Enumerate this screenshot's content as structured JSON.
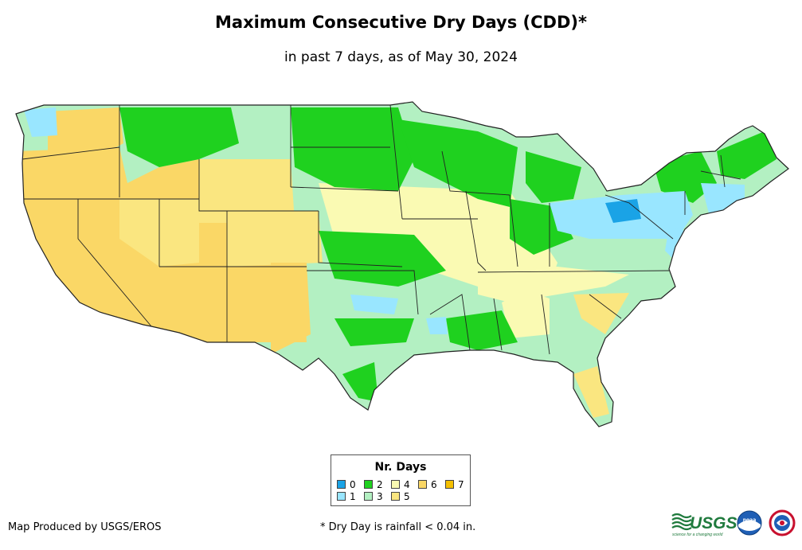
{
  "title": "Maximum Consecutive Dry Days (CDD)*",
  "subtitle": "in past 7 days, as of May 30, 2024",
  "legend": {
    "title": "Nr. Days",
    "items": [
      {
        "label": "0",
        "color": "#1aa3e6"
      },
      {
        "label": "1",
        "color": "#99e6ff"
      },
      {
        "label": "2",
        "color": "#1fd11f"
      },
      {
        "label": "3",
        "color": "#b3f0c2"
      },
      {
        "label": "4",
        "color": "#fafab3"
      },
      {
        "label": "5",
        "color": "#fae680"
      },
      {
        "label": "6",
        "color": "#fad766"
      },
      {
        "label": "7",
        "color": "#f5c000"
      }
    ]
  },
  "footer": {
    "producer": "Map Produced by USGS/EROS",
    "footnote": "* Dry Day is rainfall < 0.04 in."
  },
  "logos": {
    "usgs": "USGS",
    "usgs_tagline": "science for a changing world",
    "noaa": "noaa"
  },
  "colors": {
    "border": "#222222",
    "background": "#ffffff"
  }
}
